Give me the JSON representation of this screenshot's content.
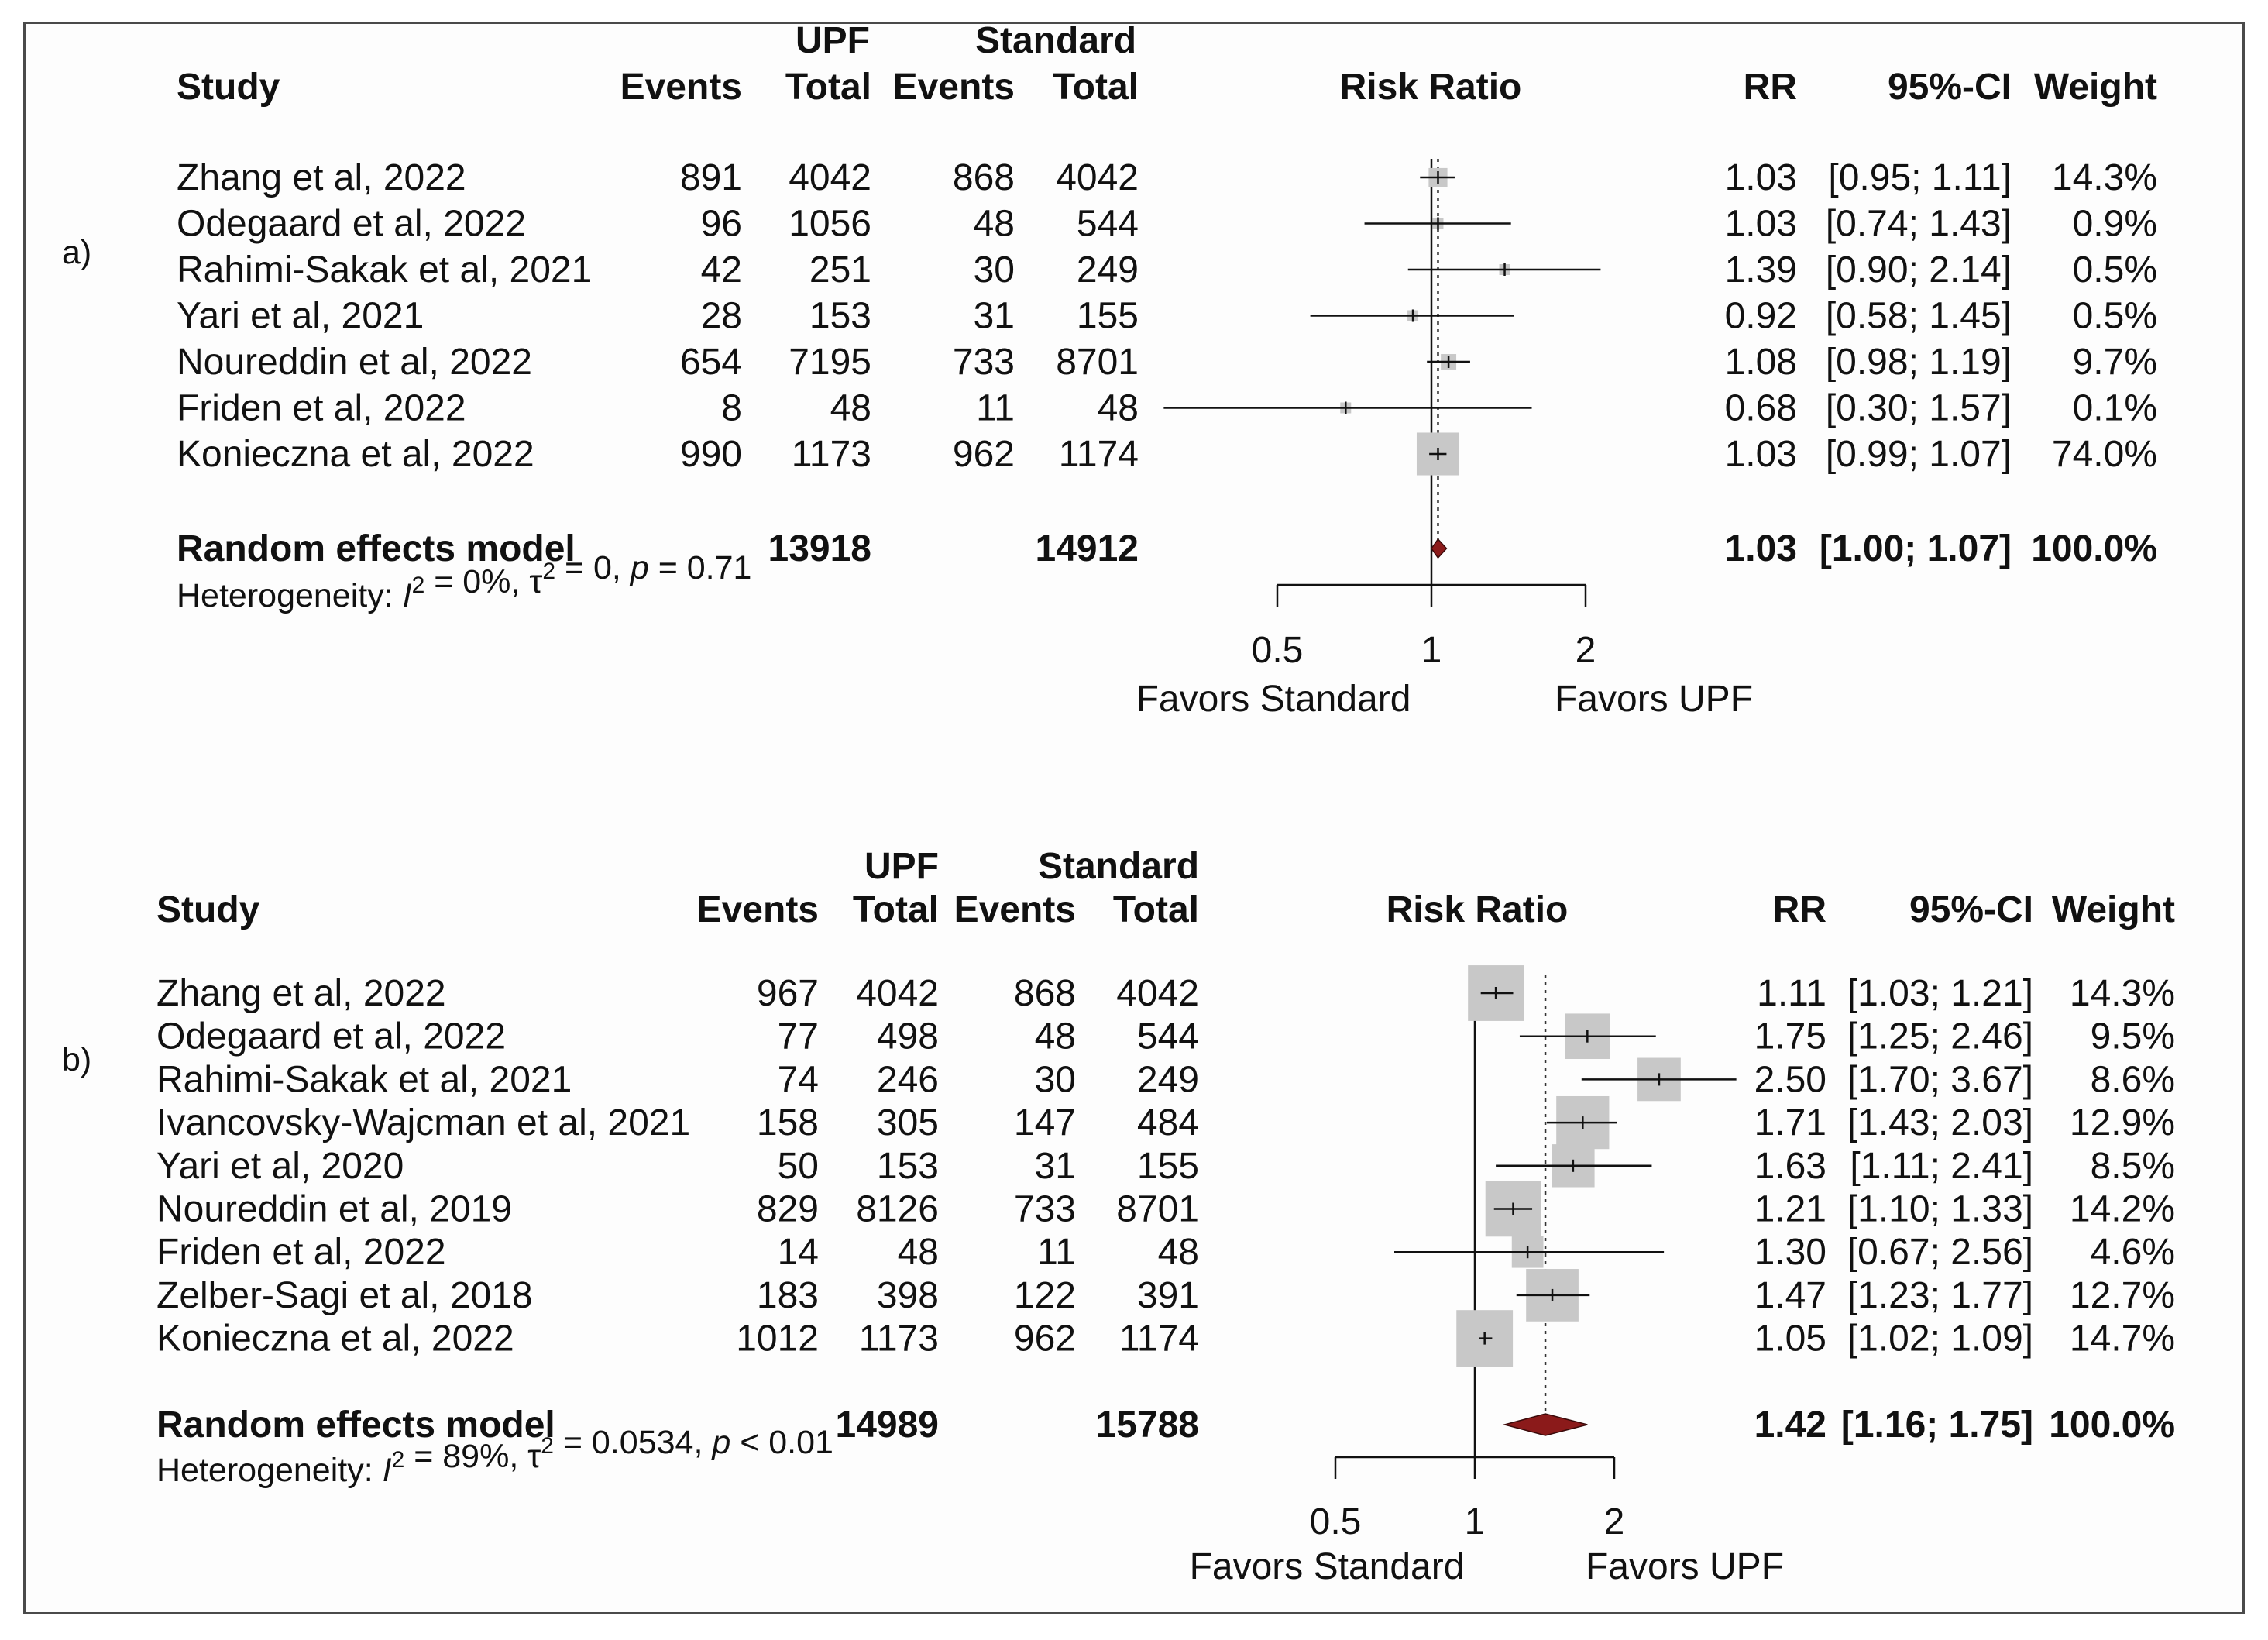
{
  "chart_data": [
    {
      "panel": "a)",
      "type": "forest",
      "headers": {
        "study": "Study",
        "group1": "UPF",
        "group2": "Standard",
        "events": "Events",
        "total": "Total",
        "plot": "Risk Ratio",
        "rr": "RR",
        "ci": "95%-CI",
        "weight": "Weight"
      },
      "studies": [
        {
          "study": "Zhang et al, 2022",
          "e1": "891",
          "t1": "4042",
          "e2": "868",
          "t2": "4042",
          "rr": 1.03,
          "lo": 0.95,
          "hi": 1.11,
          "rr_text": "1.03",
          "ci_text": "[0.95; 1.11]",
          "weight": "14.3%",
          "w": 14.3
        },
        {
          "study": "Odegaard et al, 2022",
          "e1": "96",
          "t1": "1056",
          "e2": "48",
          "t2": "544",
          "rr": 1.03,
          "lo": 0.74,
          "hi": 1.43,
          "rr_text": "1.03",
          "ci_text": "[0.74; 1.43]",
          "weight": "0.9%",
          "w": 0.9
        },
        {
          "study": "Rahimi-Sakak et al, 2021",
          "e1": "42",
          "t1": "251",
          "e2": "30",
          "t2": "249",
          "rr": 1.39,
          "lo": 0.9,
          "hi": 2.14,
          "rr_text": "1.39",
          "ci_text": "[0.90; 2.14]",
          "weight": "0.5%",
          "w": 0.5
        },
        {
          "study": "Yari et al, 2021",
          "e1": "28",
          "t1": "153",
          "e2": "31",
          "t2": "155",
          "rr": 0.92,
          "lo": 0.58,
          "hi": 1.45,
          "rr_text": "0.92",
          "ci_text": "[0.58; 1.45]",
          "weight": "0.5%",
          "w": 0.5
        },
        {
          "study": "Noureddin et al, 2022",
          "e1": "654",
          "t1": "7195",
          "e2": "733",
          "t2": "8701",
          "rr": 1.08,
          "lo": 0.98,
          "hi": 1.19,
          "rr_text": "1.08",
          "ci_text": "[0.98; 1.19]",
          "weight": "9.7%",
          "w": 9.7
        },
        {
          "study": "Friden et al, 2022",
          "e1": "8",
          "t1": "48",
          "e2": "11",
          "t2": "48",
          "rr": 0.68,
          "lo": 0.3,
          "hi": 1.57,
          "rr_text": "0.68",
          "ci_text": "[0.30; 1.57]",
          "weight": "0.1%",
          "w": 0.1
        },
        {
          "study": "Konieczna et al, 2022",
          "e1": "990",
          "t1": "1173",
          "e2": "962",
          "t2": "1174",
          "rr": 1.03,
          "lo": 0.99,
          "hi": 1.07,
          "rr_text": "1.03",
          "ci_text": "[0.99; 1.07]",
          "weight": "74.0%",
          "w": 74.0
        }
      ],
      "pooled": {
        "label": "Random effects model",
        "t1": "13918",
        "t2": "14912",
        "rr": 1.03,
        "lo": 1.0,
        "hi": 1.07,
        "rr_text": "1.03",
        "ci_text": "[1.00; 1.07]",
        "weight": "100.0%"
      },
      "heterogeneity": {
        "prefix": "Heterogeneity: ",
        "i2": "I",
        "i2_value": " = 0%, ",
        "tau": "τ",
        "tau_value": " = 0, ",
        "p": "p",
        "p_value": " = 0.71",
        "sup": "2"
      },
      "axis": {
        "scale": "log",
        "ticks": [
          0.5,
          1,
          2
        ],
        "tick_labels": [
          "0.5",
          "1",
          "2"
        ],
        "ref_line": 1
      },
      "labels": {
        "left": "Favors Standard",
        "right": "Favors UPF"
      }
    },
    {
      "panel": "b)",
      "type": "forest",
      "headers": {
        "study": "Study",
        "group1": "UPF",
        "group2": "Standard",
        "events": "Events",
        "total": "Total",
        "plot": "Risk Ratio",
        "rr": "RR",
        "ci": "95%-CI",
        "weight": "Weight"
      },
      "studies": [
        {
          "study": "Zhang et al, 2022",
          "e1": "967",
          "t1": "4042",
          "e2": "868",
          "t2": "4042",
          "rr": 1.11,
          "lo": 1.03,
          "hi": 1.21,
          "rr_text": "1.11",
          "ci_text": "[1.03; 1.21]",
          "weight": "14.3%",
          "w": 14.3
        },
        {
          "study": "Odegaard et al, 2022",
          "e1": "77",
          "t1": "498",
          "e2": "48",
          "t2": "544",
          "rr": 1.75,
          "lo": 1.25,
          "hi": 2.46,
          "rr_text": "1.75",
          "ci_text": "[1.25; 2.46]",
          "weight": "9.5%",
          "w": 9.5
        },
        {
          "study": "Rahimi-Sakak et al, 2021",
          "e1": "74",
          "t1": "246",
          "e2": "30",
          "t2": "249",
          "rr": 2.5,
          "lo": 1.7,
          "hi": 3.67,
          "rr_text": "2.50",
          "ci_text": "[1.70; 3.67]",
          "weight": "8.6%",
          "w": 8.6
        },
        {
          "study": "Ivancovsky-Wajcman et al, 2021",
          "e1": "158",
          "t1": "305",
          "e2": "147",
          "t2": "484",
          "rr": 1.71,
          "lo": 1.43,
          "hi": 2.03,
          "rr_text": "1.71",
          "ci_text": "[1.43; 2.03]",
          "weight": "12.9%",
          "w": 12.9
        },
        {
          "study": "Yari et al, 2020",
          "e1": "50",
          "t1": "153",
          "e2": "31",
          "t2": "155",
          "rr": 1.63,
          "lo": 1.11,
          "hi": 2.41,
          "rr_text": "1.63",
          "ci_text": "[1.11; 2.41]",
          "weight": "8.5%",
          "w": 8.5
        },
        {
          "study": "Noureddin et al, 2019",
          "e1": "829",
          "t1": "8126",
          "e2": "733",
          "t2": "8701",
          "rr": 1.21,
          "lo": 1.1,
          "hi": 1.33,
          "rr_text": "1.21",
          "ci_text": "[1.10; 1.33]",
          "weight": "14.2%",
          "w": 14.2
        },
        {
          "study": "Friden et al, 2022",
          "e1": "14",
          "t1": "48",
          "e2": "11",
          "t2": "48",
          "rr": 1.3,
          "lo": 0.67,
          "hi": 2.56,
          "rr_text": "1.30",
          "ci_text": "[0.67; 2.56]",
          "weight": "4.6%",
          "w": 4.6
        },
        {
          "study": "Zelber-Sagi et al, 2018",
          "e1": "183",
          "t1": "398",
          "e2": "122",
          "t2": "391",
          "rr": 1.47,
          "lo": 1.23,
          "hi": 1.77,
          "rr_text": "1.47",
          "ci_text": "[1.23; 1.77]",
          "weight": "12.7%",
          "w": 12.7
        },
        {
          "study": "Konieczna et al, 2022",
          "e1": "1012",
          "t1": "1173",
          "e2": "962",
          "t2": "1174",
          "rr": 1.05,
          "lo": 1.02,
          "hi": 1.09,
          "rr_text": "1.05",
          "ci_text": "[1.02; 1.09]",
          "weight": "14.7%",
          "w": 14.7
        }
      ],
      "pooled": {
        "label": "Random effects model",
        "t1": "14989",
        "t2": "15788",
        "rr": 1.42,
        "lo": 1.16,
        "hi": 1.75,
        "rr_text": "1.42",
        "ci_text": "[1.16; 1.75]",
        "weight": "100.0%"
      },
      "heterogeneity": {
        "prefix": "Heterogeneity: ",
        "i2": "I",
        "i2_value": " = 89%, ",
        "tau": "τ",
        "tau_value": " = 0.0534, ",
        "p": "p",
        "p_value": " < 0.01",
        "sup": "2"
      },
      "axis": {
        "scale": "log",
        "ticks": [
          0.5,
          1,
          2
        ],
        "tick_labels": [
          "0.5",
          "1",
          "2"
        ],
        "ref_line": 1
      },
      "labels": {
        "left": "Favors Standard",
        "right": "Favors UPF"
      }
    }
  ],
  "colors": {
    "text": "#111111",
    "box": "#c8c8c8",
    "diamond": "#8b1a1a",
    "line": "#111111",
    "dotted": "#333333"
  }
}
